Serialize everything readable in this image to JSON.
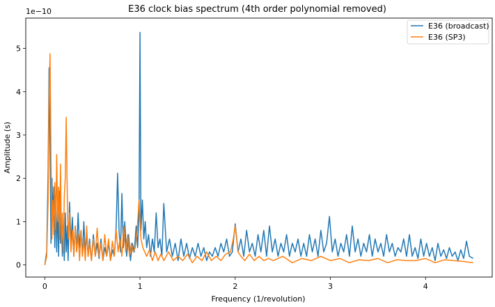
{
  "chart_data": {
    "type": "line",
    "title": "E36 clock bias spectrum (4th order polynomial removed)",
    "xlabel": "Frequency (1/revolution)",
    "ylabel": "Amplitude (s)",
    "y_offset_text": "1e−10",
    "xlim": [
      -0.2,
      4.7
    ],
    "ylim": [
      -0.28,
      5.7
    ],
    "y_scale_note": "values in units of 1e-10 s",
    "x_ticks": [
      0,
      1,
      2,
      3,
      4
    ],
    "x_tick_labels": [
      "0",
      "1",
      "2",
      "3",
      "4"
    ],
    "y_ticks": [
      0,
      1,
      2,
      3,
      4,
      5
    ],
    "y_tick_labels": [
      "0",
      "1",
      "2",
      "3",
      "4",
      "5"
    ],
    "grid": false,
    "legend_position": "upper right",
    "series": [
      {
        "name": "E36 (broadcast)",
        "color": "#1f77b4",
        "x": [
          0.0,
          0.02,
          0.035,
          0.045,
          0.055,
          0.065,
          0.075,
          0.085,
          0.095,
          0.105,
          0.115,
          0.125,
          0.135,
          0.145,
          0.155,
          0.165,
          0.175,
          0.185,
          0.195,
          0.205,
          0.215,
          0.225,
          0.235,
          0.245,
          0.26,
          0.275,
          0.29,
          0.305,
          0.32,
          0.335,
          0.35,
          0.365,
          0.38,
          0.395,
          0.41,
          0.425,
          0.44,
          0.455,
          0.47,
          0.49,
          0.51,
          0.53,
          0.55,
          0.57,
          0.59,
          0.61,
          0.63,
          0.65,
          0.67,
          0.69,
          0.71,
          0.73,
          0.75,
          0.765,
          0.78,
          0.795,
          0.81,
          0.825,
          0.84,
          0.86,
          0.88,
          0.9,
          0.92,
          0.94,
          0.96,
          0.975,
          0.99,
          1.0,
          1.01,
          1.025,
          1.04,
          1.055,
          1.07,
          1.09,
          1.11,
          1.13,
          1.15,
          1.17,
          1.19,
          1.21,
          1.23,
          1.25,
          1.28,
          1.31,
          1.34,
          1.37,
          1.4,
          1.43,
          1.46,
          1.49,
          1.52,
          1.55,
          1.58,
          1.61,
          1.64,
          1.67,
          1.7,
          1.73,
          1.76,
          1.79,
          1.82,
          1.85,
          1.88,
          1.91,
          1.94,
          1.97,
          2.0,
          2.03,
          2.06,
          2.09,
          2.12,
          2.15,
          2.18,
          2.21,
          2.24,
          2.27,
          2.3,
          2.33,
          2.36,
          2.39,
          2.42,
          2.45,
          2.48,
          2.51,
          2.54,
          2.57,
          2.6,
          2.63,
          2.66,
          2.69,
          2.72,
          2.75,
          2.78,
          2.81,
          2.84,
          2.87,
          2.9,
          2.93,
          2.96,
          2.99,
          3.02,
          3.05,
          3.08,
          3.11,
          3.14,
          3.17,
          3.2,
          3.23,
          3.26,
          3.29,
          3.32,
          3.35,
          3.38,
          3.41,
          3.44,
          3.47,
          3.5,
          3.53,
          3.56,
          3.59,
          3.62,
          3.65,
          3.68,
          3.71,
          3.74,
          3.77,
          3.8,
          3.83,
          3.86,
          3.89,
          3.92,
          3.95,
          3.98,
          4.01,
          4.04,
          4.07,
          4.1,
          4.13,
          4.16,
          4.19,
          4.22,
          4.25,
          4.28,
          4.31,
          4.34,
          4.37,
          4.4,
          4.43,
          4.46,
          4.5
        ],
        "y": [
          0.0,
          0.3,
          2.2,
          4.55,
          2.8,
          0.5,
          2.0,
          1.1,
          1.8,
          0.4,
          1.6,
          0.3,
          1.4,
          0.2,
          1.7,
          0.5,
          1.0,
          0.2,
          0.8,
          0.1,
          1.2,
          0.3,
          0.9,
          0.1,
          1.45,
          0.5,
          1.1,
          0.2,
          0.9,
          0.3,
          1.2,
          0.4,
          0.8,
          0.2,
          1.0,
          0.3,
          0.7,
          0.2,
          0.6,
          0.1,
          0.7,
          0.2,
          0.5,
          0.15,
          0.6,
          0.1,
          0.4,
          0.2,
          0.5,
          0.1,
          0.35,
          0.2,
          0.9,
          2.12,
          0.8,
          0.3,
          1.65,
          0.4,
          1.0,
          0.2,
          0.7,
          0.1,
          0.5,
          0.3,
          0.9,
          0.4,
          1.2,
          5.37,
          0.8,
          1.5,
          0.6,
          1.0,
          0.4,
          0.7,
          0.2,
          0.6,
          0.3,
          1.2,
          0.4,
          0.6,
          0.2,
          1.42,
          0.3,
          0.6,
          0.2,
          0.5,
          0.1,
          0.6,
          0.2,
          0.5,
          0.15,
          0.4,
          0.2,
          0.5,
          0.2,
          0.4,
          0.1,
          0.3,
          0.2,
          0.4,
          0.2,
          0.5,
          0.3,
          0.6,
          0.2,
          0.3,
          0.95,
          0.3,
          0.6,
          0.2,
          0.8,
          0.3,
          0.5,
          0.2,
          0.7,
          0.3,
          0.8,
          0.2,
          0.9,
          0.3,
          0.6,
          0.2,
          0.5,
          0.3,
          0.7,
          0.2,
          0.5,
          0.3,
          0.6,
          0.2,
          0.5,
          0.2,
          0.7,
          0.3,
          0.6,
          0.2,
          0.8,
          0.3,
          0.5,
          1.12,
          0.3,
          0.6,
          0.2,
          0.5,
          0.3,
          0.7,
          0.2,
          0.9,
          0.3,
          0.6,
          0.2,
          0.5,
          0.3,
          0.7,
          0.2,
          0.6,
          0.3,
          0.5,
          0.2,
          0.7,
          0.3,
          0.5,
          0.2,
          0.4,
          0.3,
          0.6,
          0.2,
          0.7,
          0.2,
          0.4,
          0.15,
          0.6,
          0.2,
          0.5,
          0.2,
          0.4,
          0.1,
          0.5,
          0.2,
          0.35,
          0.15,
          0.4,
          0.2,
          0.3,
          0.1,
          0.35,
          0.15,
          0.55,
          0.2,
          0.15
        ]
      },
      {
        "name": "E36 (SP3)",
        "color": "#ff7f0e",
        "x": [
          0.0,
          0.02,
          0.035,
          0.045,
          0.055,
          0.065,
          0.075,
          0.085,
          0.095,
          0.105,
          0.115,
          0.125,
          0.135,
          0.145,
          0.155,
          0.165,
          0.175,
          0.185,
          0.195,
          0.205,
          0.215,
          0.225,
          0.235,
          0.245,
          0.26,
          0.275,
          0.29,
          0.305,
          0.32,
          0.335,
          0.35,
          0.365,
          0.38,
          0.395,
          0.41,
          0.425,
          0.44,
          0.455,
          0.47,
          0.49,
          0.51,
          0.53,
          0.55,
          0.57,
          0.59,
          0.61,
          0.63,
          0.65,
          0.67,
          0.69,
          0.71,
          0.73,
          0.75,
          0.77,
          0.79,
          0.81,
          0.83,
          0.85,
          0.87,
          0.89,
          0.91,
          0.93,
          0.95,
          0.97,
          0.99,
          1.01,
          1.03,
          1.05,
          1.07,
          1.1,
          1.13,
          1.16,
          1.19,
          1.22,
          1.25,
          1.3,
          1.35,
          1.4,
          1.45,
          1.5,
          1.55,
          1.6,
          1.65,
          1.7,
          1.75,
          1.8,
          1.85,
          1.9,
          1.95,
          1.98,
          2.0,
          2.03,
          2.06,
          2.1,
          2.15,
          2.2,
          2.25,
          2.3,
          2.35,
          2.4,
          2.5,
          2.6,
          2.7,
          2.8,
          2.9,
          3.0,
          3.1,
          3.2,
          3.3,
          3.4,
          3.5,
          3.6,
          3.7,
          3.8,
          3.9,
          4.0,
          4.1,
          4.2,
          4.3,
          4.4,
          4.5
        ],
        "y": [
          0.0,
          0.2,
          1.5,
          3.8,
          4.88,
          2.5,
          0.6,
          1.5,
          0.7,
          1.9,
          0.8,
          2.55,
          1.0,
          1.8,
          0.6,
          2.33,
          0.5,
          1.2,
          0.3,
          1.6,
          2.0,
          3.41,
          1.8,
          0.6,
          1.2,
          0.3,
          0.8,
          0.2,
          0.9,
          0.3,
          0.7,
          0.1,
          0.8,
          0.2,
          0.6,
          0.1,
          0.9,
          0.2,
          0.5,
          0.1,
          0.6,
          0.2,
          0.85,
          0.2,
          0.5,
          0.1,
          0.7,
          0.2,
          0.6,
          0.1,
          0.55,
          0.2,
          0.8,
          0.3,
          0.6,
          0.2,
          0.9,
          0.3,
          0.7,
          0.2,
          0.5,
          0.3,
          0.4,
          0.8,
          1.5,
          0.6,
          0.4,
          0.3,
          0.2,
          0.35,
          0.1,
          0.3,
          0.1,
          0.25,
          0.1,
          0.3,
          0.1,
          0.2,
          0.1,
          0.25,
          0.05,
          0.2,
          0.1,
          0.3,
          0.1,
          0.2,
          0.1,
          0.25,
          0.3,
          0.6,
          0.9,
          0.3,
          0.2,
          0.1,
          0.25,
          0.1,
          0.2,
          0.1,
          0.15,
          0.1,
          0.2,
          0.05,
          0.15,
          0.1,
          0.2,
          0.1,
          0.15,
          0.05,
          0.12,
          0.1,
          0.15,
          0.05,
          0.12,
          0.1,
          0.1,
          0.15,
          0.05,
          0.12,
          0.1,
          0.08,
          0.05
        ]
      }
    ]
  }
}
